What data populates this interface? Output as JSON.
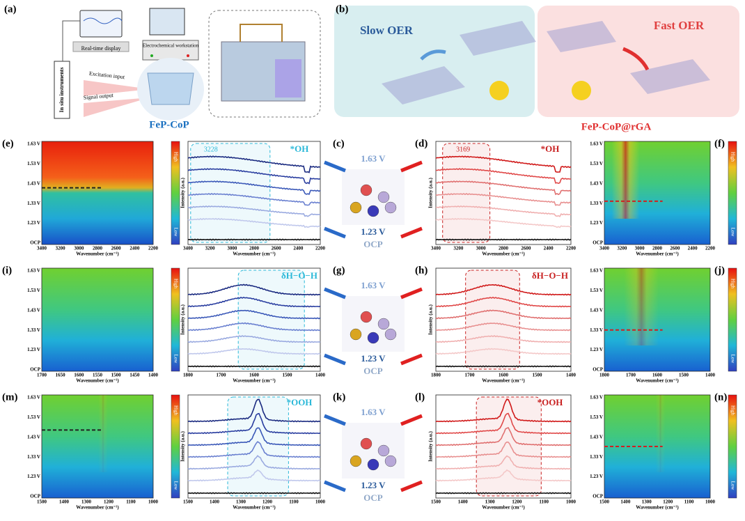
{
  "top": {
    "a": {
      "label": "(a)",
      "display": "Real-time display",
      "workstation": "Electrochemical workstation",
      "instruments": "In situ instruments",
      "excitation": "Excitation input",
      "signal": "Signal output",
      "material": "FeP-CoP"
    },
    "b": {
      "label": "(b)",
      "slow": "Slow OER",
      "fast": "Fast OER",
      "material": "FeP-CoP@rGA"
    }
  },
  "rows": [
    {
      "map_l": {
        "label": "(e)",
        "yticks": [
          "1.63 V",
          "1.53 V",
          "1.43 V",
          "1.33 V",
          "1.23 V",
          "OCP"
        ],
        "xticks": [
          "3400",
          "3200",
          "3000",
          "2800",
          "2600",
          "2400",
          "2200"
        ],
        "xlabel": "Wavenumber (cm⁻¹)"
      },
      "bar_l": {
        "high": "High",
        "low": "Low"
      },
      "spec_l": {
        "ylabel": "Intensity (a.u.)",
        "xticks": [
          "3400",
          "3200",
          "3000",
          "2800",
          "2600",
          "2400",
          "2200"
        ],
        "xlabel": "Wavenumber (cm⁻¹)",
        "species": "*OH",
        "peak": "3228"
      },
      "center": {
        "label": "(c)",
        "top": "1.63 V",
        "bottom": "1.23 V",
        "ocp": "OCP"
      },
      "spec_r": {
        "label": "(d)",
        "ylabel": "Intensity (a.u.)",
        "xticks": [
          "3400",
          "3200",
          "3000",
          "2800",
          "2600",
          "2400",
          "2200"
        ],
        "xlabel": "Wavenumber (cm⁻¹)",
        "species": "*OH",
        "peak": "3169"
      },
      "map_r": {
        "label": "(f)",
        "yticks": [
          "1.63 V",
          "1.53 V",
          "1.43 V",
          "1.33 V",
          "1.23 V",
          "OCP"
        ],
        "xticks": [
          "3400",
          "3200",
          "3000",
          "2800",
          "2600",
          "2400",
          "2200"
        ],
        "xlabel": "Wavenumber (cm⁻¹)"
      },
      "bar_r": {
        "high": "High",
        "low": "Low"
      }
    },
    {
      "map_l": {
        "label": "(i)",
        "yticks": [
          "1.63 V",
          "1.53 V",
          "1.43 V",
          "1.33 V",
          "1.23 V",
          "OCP"
        ],
        "xticks": [
          "1700",
          "1650",
          "1600",
          "1550",
          "1500",
          "1450",
          "1400"
        ],
        "xlabel": "Wavenumber (cm⁻¹)"
      },
      "bar_l": {
        "high": "High",
        "low": "Low"
      },
      "spec_l": {
        "ylabel": "Intensity (a.u.)",
        "xticks": [
          "1800",
          "1700",
          "1600",
          "1500",
          "1400"
        ],
        "xlabel": "Wavenumber (cm⁻¹)",
        "species": "δH−O−H"
      },
      "center": {
        "label": "(g)",
        "top": "1.63 V",
        "bottom": "1.23 V",
        "ocp": "OCP"
      },
      "spec_r": {
        "label": "(h)",
        "ylabel": "Intensity (a.u.)",
        "xticks": [
          "1800",
          "1700",
          "1600",
          "1500",
          "1400"
        ],
        "xlabel": "Wavenumber (cm⁻¹)",
        "species": "δH−O−H"
      },
      "map_r": {
        "label": "(j)",
        "yticks": [
          "1.63 V",
          "1.53 V",
          "1.43 V",
          "1.33 V",
          "1.23 V",
          "OCP"
        ],
        "xticks": [
          "1800",
          "1700",
          "1600",
          "1500",
          "1400"
        ],
        "xlabel": "Wavenumber (cm⁻¹)"
      },
      "bar_r": {
        "high": "High",
        "low": "Low"
      }
    },
    {
      "map_l": {
        "label": "(m)",
        "yticks": [
          "1.63 V",
          "1.53 V",
          "1.43 V",
          "1.33 V",
          "1.23 V",
          "OCP"
        ],
        "xticks": [
          "1500",
          "1400",
          "1300",
          "1200",
          "1100",
          "1000"
        ],
        "xlabel": "Wavenumber (cm⁻¹)"
      },
      "bar_l": {
        "high": "High",
        "low": "Low"
      },
      "spec_l": {
        "ylabel": "Intensity (a.u.)",
        "xticks": [
          "1500",
          "1400",
          "1300",
          "1200",
          "1100",
          "1000"
        ],
        "xlabel": "Wavenumber (cm⁻¹)",
        "species": "*OOH"
      },
      "center": {
        "label": "(k)",
        "top": "1.63 V",
        "bottom": "1.23 V",
        "ocp": "OCP"
      },
      "spec_r": {
        "label": "(l)",
        "ylabel": "Intensity (a.u.)",
        "xticks": [
          "1500",
          "1400",
          "1300",
          "1200",
          "1100",
          "1000"
        ],
        "xlabel": "Wavenumber (cm⁻¹)",
        "species": "*OOH"
      },
      "map_r": {
        "label": "(n)",
        "yticks": [
          "1.63 V",
          "1.53 V",
          "1.43 V",
          "1.33 V",
          "1.23 V",
          "OCP"
        ],
        "xticks": [
          "1500",
          "1400",
          "1300",
          "1200",
          "1100",
          "1000"
        ],
        "xlabel": "Wavenumber (cm⁻¹)"
      },
      "bar_r": {
        "high": "High",
        "low": "Low"
      }
    }
  ]
}
